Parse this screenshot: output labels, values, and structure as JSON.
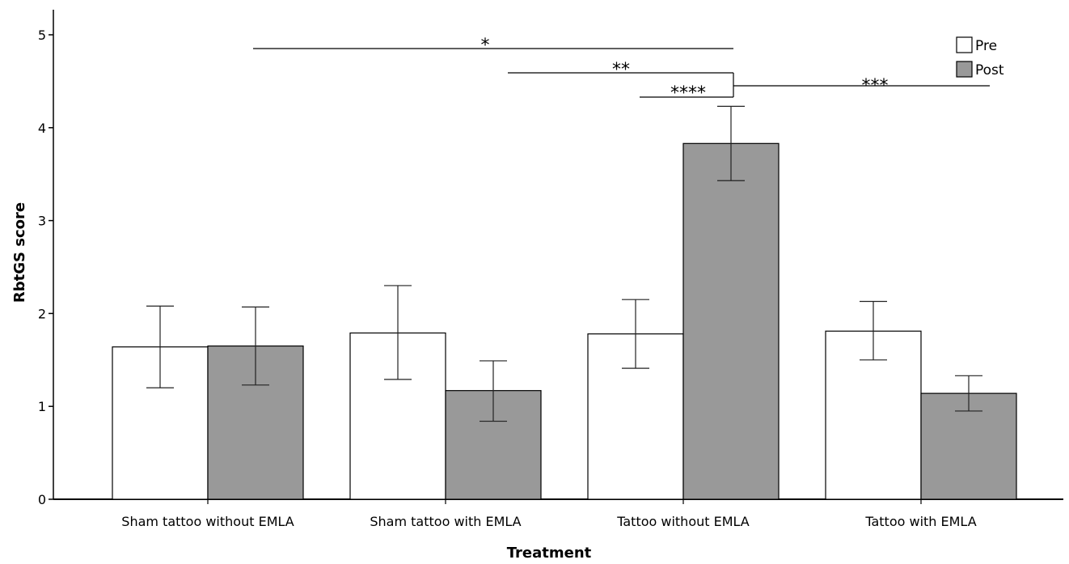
{
  "chart_data": {
    "type": "bar",
    "xlabel": "Treatment",
    "ylabel": "RbtGS score",
    "ylim": [
      0,
      5
    ],
    "yticks": [
      "0",
      "1",
      "2",
      "3",
      "4",
      "5"
    ],
    "categories": [
      "Sham tattoo without EMLA",
      "Sham tattoo with EMLA",
      "Tattoo without EMLA",
      "Tattoo with EMLA"
    ],
    "series": [
      {
        "name": "Pre",
        "color": "#ffffff",
        "values": [
          1.64,
          1.79,
          1.78,
          1.81
        ],
        "error_low": [
          1.2,
          1.29,
          1.41,
          1.5
        ],
        "error_high": [
          2.08,
          2.3,
          2.15,
          2.13
        ]
      },
      {
        "name": "Post",
        "color": "#999999",
        "values": [
          1.65,
          1.17,
          3.83,
          1.14
        ],
        "error_low": [
          1.23,
          0.84,
          3.43,
          0.95
        ],
        "error_high": [
          2.07,
          1.49,
          4.23,
          1.33
        ]
      }
    ],
    "legend_position": "top-right",
    "significance": [
      {
        "label": "*",
        "from": "Sham tattoo without EMLA",
        "to": "Tattoo without EMLA"
      },
      {
        "label": "**",
        "from": "Sham tattoo with EMLA",
        "to": "Tattoo without EMLA"
      },
      {
        "label": "****",
        "from": "Tattoo without EMLA (Pre)",
        "to": "Tattoo without EMLA (Post)"
      },
      {
        "label": "***",
        "from": "Tattoo without EMLA",
        "to": "Tattoo with EMLA"
      }
    ]
  }
}
